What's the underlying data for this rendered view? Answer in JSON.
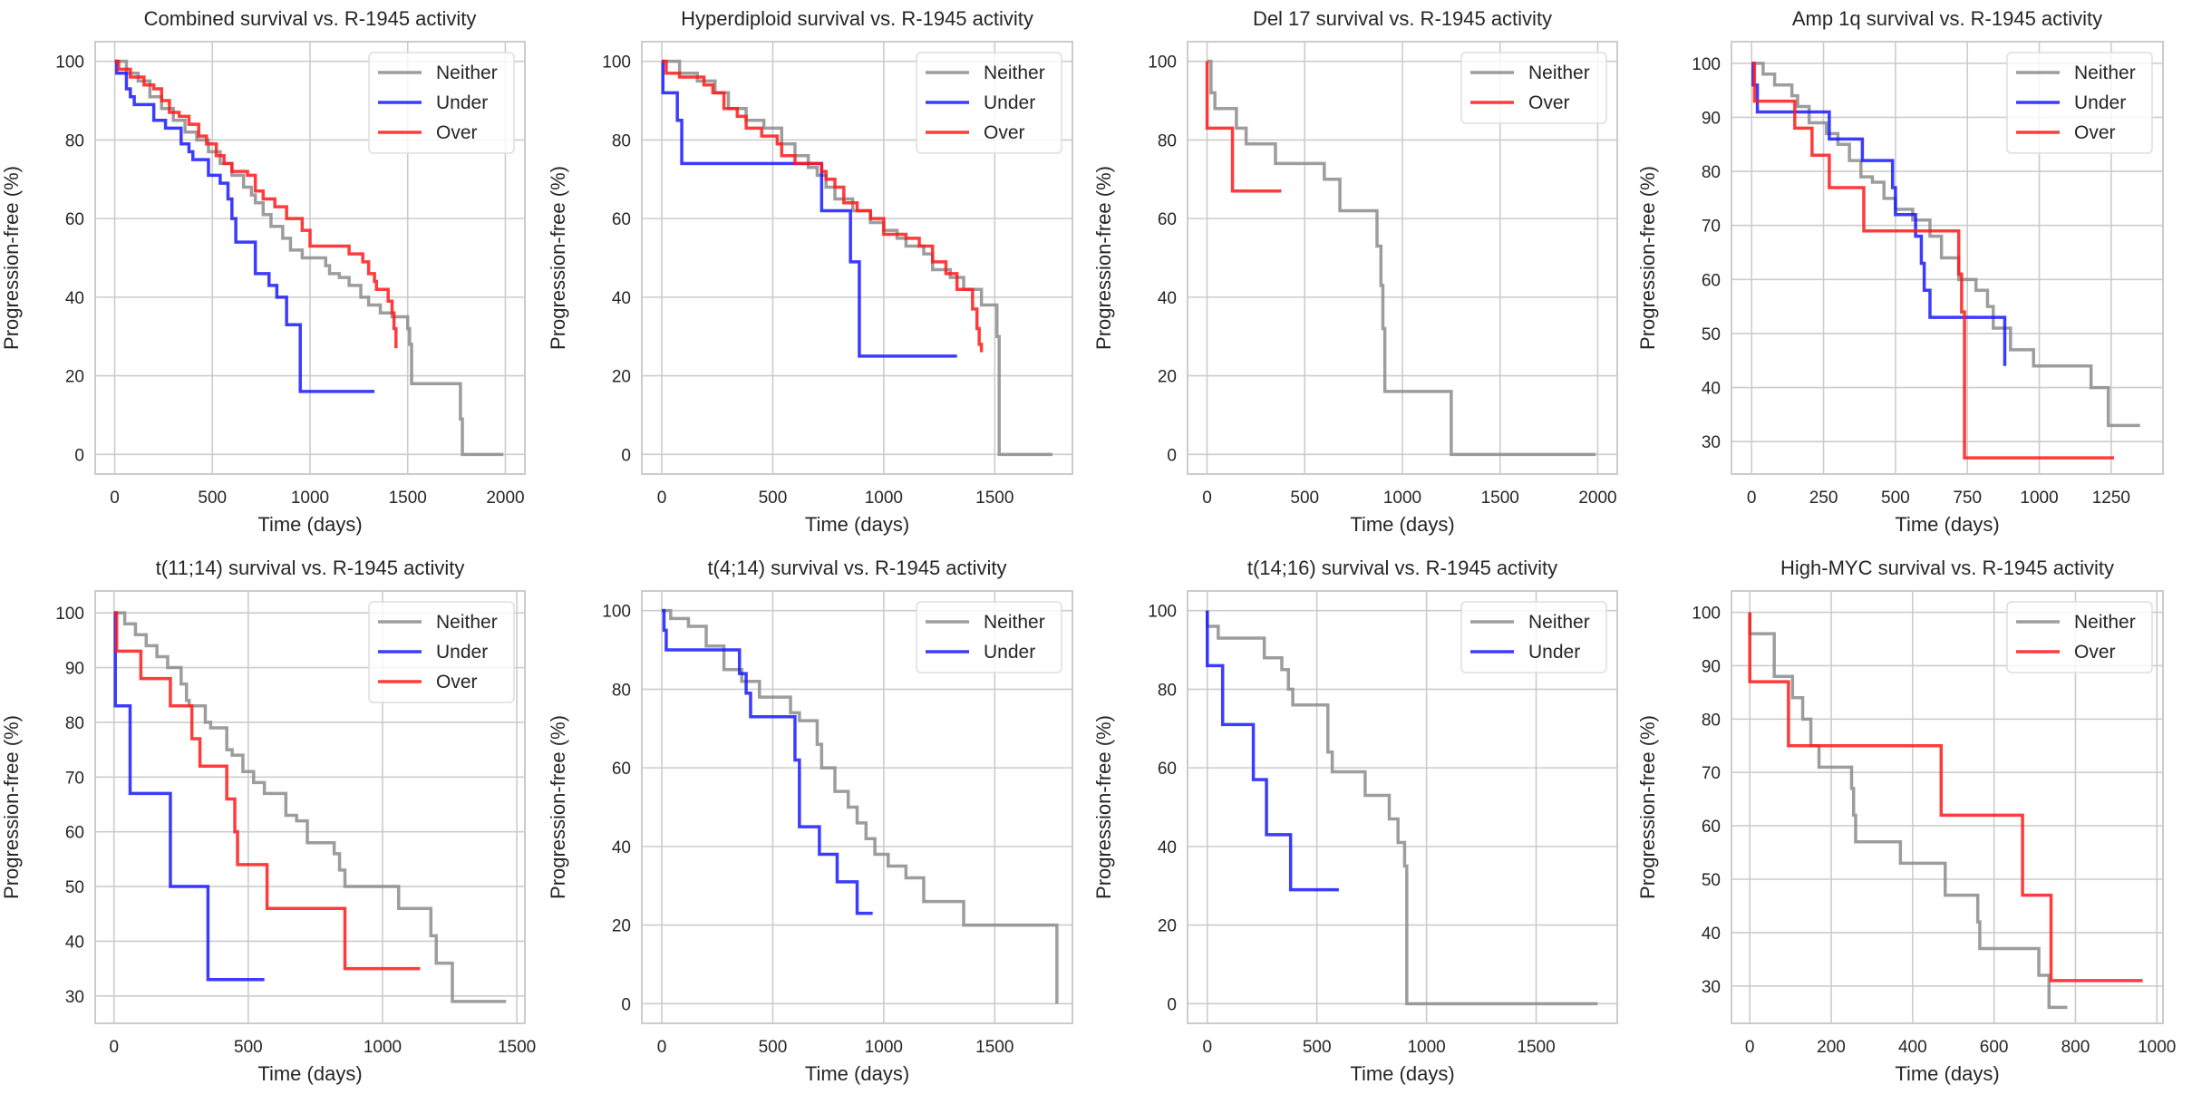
{
  "colors": {
    "Neither": "#8c8c8c",
    "Under": "#1a1aff",
    "Over": "#ff1a1a",
    "grid": "#cccccc",
    "frame": "#cccccc"
  },
  "chart_data": [
    {
      "type": "line",
      "step": true,
      "title": "Combined survival vs. R-1945 activity",
      "xlabel": "Time (days)",
      "ylabel": "Progression-free (%)",
      "xlim": [
        -100,
        2100
      ],
      "ylim": [
        -5,
        105
      ],
      "xticks": [
        0,
        500,
        1000,
        1500,
        2000
      ],
      "yticks": [
        0,
        20,
        40,
        60,
        80,
        100
      ],
      "grid": true,
      "legend": "top-right",
      "series": [
        {
          "name": "Neither",
          "x": [
            0,
            60,
            120,
            180,
            240,
            300,
            360,
            420,
            480,
            540,
            600,
            660,
            700,
            720,
            760,
            800,
            860,
            900,
            960,
            1000,
            1080,
            1100,
            1150,
            1200,
            1260,
            1300,
            1360,
            1420,
            1500,
            1510,
            1520,
            1760,
            1770,
            1780,
            1990
          ],
          "y": [
            100,
            97,
            95,
            91,
            88,
            85,
            82,
            80,
            77,
            74,
            71,
            68,
            66,
            64,
            61,
            58,
            55,
            52,
            50,
            50,
            48,
            46,
            45,
            43,
            40,
            38,
            36,
            35,
            32,
            28,
            18,
            18,
            9,
            0,
            0
          ]
        },
        {
          "name": "Under",
          "x": [
            0,
            10,
            60,
            80,
            100,
            200,
            260,
            340,
            380,
            400,
            480,
            500,
            540,
            580,
            600,
            620,
            720,
            790,
            830,
            880,
            950,
            1330
          ],
          "y": [
            100,
            97,
            93,
            91,
            89,
            85,
            83,
            79,
            77,
            75,
            71,
            71,
            69,
            65,
            60,
            54,
            46,
            43,
            40,
            33,
            16,
            16
          ]
        },
        {
          "name": "Over",
          "x": [
            0,
            20,
            80,
            150,
            200,
            240,
            280,
            330,
            380,
            430,
            470,
            520,
            560,
            600,
            680,
            720,
            760,
            820,
            880,
            960,
            1000,
            1140,
            1200,
            1270,
            1300,
            1330,
            1340,
            1400,
            1420,
            1430,
            1440
          ],
          "y": [
            100,
            98,
            96,
            94,
            93,
            90,
            87,
            86,
            84,
            81,
            79,
            76,
            74,
            72,
            71,
            67,
            65,
            63,
            60,
            57,
            53,
            53,
            51,
            49,
            46,
            44,
            42,
            39,
            36,
            32,
            27
          ]
        }
      ]
    },
    {
      "type": "line",
      "step": true,
      "title": "Hyperdiploid survival vs. R-1945 activity",
      "xlabel": "Time (days)",
      "ylabel": "Progression-free (%)",
      "xlim": [
        -90,
        1850
      ],
      "ylim": [
        -5,
        105
      ],
      "xticks": [
        0,
        500,
        1000,
        1500
      ],
      "yticks": [
        0,
        20,
        40,
        60,
        80,
        100
      ],
      "grid": true,
      "legend": "top-right",
      "series": [
        {
          "name": "Neither",
          "x": [
            0,
            80,
            160,
            240,
            300,
            380,
            460,
            540,
            600,
            660,
            700,
            740,
            780,
            860,
            940,
            1000,
            1060,
            1100,
            1180,
            1220,
            1300,
            1360,
            1440,
            1500,
            1510,
            1520,
            1760
          ],
          "y": [
            100,
            97,
            95,
            92,
            88,
            85,
            83,
            79,
            76,
            73,
            71,
            68,
            65,
            62,
            59,
            57,
            55,
            53,
            51,
            47,
            45,
            42,
            38,
            38,
            30,
            0,
            0
          ]
        },
        {
          "name": "Under",
          "x": [
            0,
            5,
            70,
            90,
            720,
            850,
            890,
            1330
          ],
          "y": [
            100,
            92,
            85,
            74,
            62,
            49,
            25,
            25
          ]
        },
        {
          "name": "Over",
          "x": [
            0,
            20,
            80,
            190,
            230,
            280,
            340,
            380,
            450,
            520,
            540,
            600,
            720,
            740,
            780,
            820,
            880,
            940,
            1000,
            1100,
            1160,
            1220,
            1280,
            1330,
            1400,
            1420,
            1430,
            1440
          ],
          "y": [
            100,
            97,
            96,
            94,
            92,
            88,
            86,
            83,
            81,
            79,
            76,
            74,
            72,
            70,
            68,
            64,
            62,
            60,
            56,
            55,
            53,
            49,
            46,
            42,
            37,
            32,
            28,
            26
          ]
        }
      ]
    },
    {
      "type": "line",
      "step": true,
      "title": "Del 17 survival vs. R-1945 activity",
      "xlabel": "Time (days)",
      "ylabel": "Progression-free (%)",
      "xlim": [
        -100,
        2100
      ],
      "ylim": [
        -5,
        105
      ],
      "xticks": [
        0,
        500,
        1000,
        1500,
        2000
      ],
      "yticks": [
        0,
        20,
        40,
        60,
        80,
        100
      ],
      "grid": true,
      "legend": "top-right",
      "series": [
        {
          "name": "Neither",
          "x": [
            0,
            20,
            40,
            150,
            200,
            350,
            600,
            680,
            870,
            890,
            900,
            910,
            1250,
            1990
          ],
          "y": [
            100,
            92,
            88,
            83,
            79,
            74,
            70,
            62,
            53,
            43,
            32,
            16,
            0,
            0
          ]
        },
        {
          "name": "Over",
          "x": [
            0,
            130,
            380
          ],
          "y": [
            83,
            67,
            67
          ],
          "start_y": 100
        }
      ]
    },
    {
      "type": "line",
      "step": true,
      "title": "Amp 1q survival vs. R-1945 activity",
      "xlabel": "Time (days)",
      "ylabel": "Progression-free (%)",
      "xlim": [
        -70,
        1430
      ],
      "ylim": [
        24,
        104
      ],
      "xticks": [
        0,
        250,
        500,
        750,
        1000,
        1250
      ],
      "yticks": [
        30,
        40,
        50,
        60,
        70,
        80,
        90,
        100
      ],
      "grid": true,
      "legend": "top-right",
      "series": [
        {
          "name": "Neither",
          "x": [
            0,
            40,
            80,
            140,
            160,
            200,
            260,
            300,
            340,
            380,
            420,
            460,
            500,
            560,
            620,
            660,
            720,
            780,
            820,
            840,
            900,
            980,
            1180,
            1240,
            1350
          ],
          "y": [
            100,
            98,
            96,
            94,
            92,
            89,
            87,
            85,
            82,
            79,
            78,
            75,
            73,
            71,
            68,
            64,
            60,
            58,
            55,
            51,
            47,
            44,
            40,
            33,
            33
          ]
        },
        {
          "name": "Under",
          "x": [
            0,
            5,
            20,
            270,
            385,
            490,
            500,
            555,
            570,
            590,
            600,
            620,
            880
          ],
          "y": [
            100,
            96,
            91,
            86,
            82,
            77,
            72,
            72,
            68,
            63,
            58,
            53,
            44
          ]
        },
        {
          "name": "Over",
          "x": [
            0,
            10,
            150,
            210,
            270,
            390,
            720,
            730,
            740,
            1260
          ],
          "y": [
            100,
            93,
            88,
            83,
            77,
            69,
            61,
            54,
            27,
            27
          ]
        }
      ]
    },
    {
      "type": "line",
      "step": true,
      "title": "t(11;14) survival vs. R-1945 activity",
      "xlabel": "Time (days)",
      "ylabel": "Progression-free (%)",
      "xlim": [
        -70,
        1530
      ],
      "ylim": [
        25,
        104
      ],
      "xticks": [
        0,
        500,
        1000,
        1500
      ],
      "yticks": [
        30,
        40,
        50,
        60,
        70,
        80,
        90,
        100
      ],
      "grid": true,
      "legend": "top-right",
      "series": [
        {
          "name": "Neither",
          "x": [
            0,
            40,
            80,
            120,
            160,
            200,
            250,
            270,
            280,
            340,
            360,
            420,
            440,
            480,
            520,
            560,
            640,
            680,
            720,
            760,
            820,
            840,
            860,
            1060,
            1180,
            1200,
            1260,
            1460
          ],
          "y": [
            100,
            98,
            96,
            94,
            92,
            90,
            87,
            84,
            83,
            80,
            79,
            75,
            74,
            71,
            69,
            67,
            63,
            62,
            58,
            58,
            56,
            53,
            50,
            46,
            41,
            36,
            29,
            29
          ]
        },
        {
          "name": "Under",
          "x": [
            0,
            5,
            60,
            210,
            350,
            560
          ],
          "y": [
            100,
            83,
            67,
            50,
            33,
            33
          ]
        },
        {
          "name": "Over",
          "x": [
            0,
            10,
            100,
            210,
            290,
            320,
            420,
            450,
            460,
            570,
            860,
            1140
          ],
          "y": [
            100,
            93,
            88,
            83,
            77,
            72,
            66,
            60,
            54,
            46,
            35,
            35
          ]
        }
      ]
    },
    {
      "type": "line",
      "step": true,
      "title": "t(4;14) survival vs. R-1945 activity",
      "xlabel": "Time (days)",
      "ylabel": "Progression-free (%)",
      "xlim": [
        -90,
        1850
      ],
      "ylim": [
        -5,
        105
      ],
      "xticks": [
        0,
        500,
        1000,
        1500
      ],
      "yticks": [
        0,
        20,
        40,
        60,
        80,
        100
      ],
      "grid": true,
      "legend": "top-right",
      "series": [
        {
          "name": "Neither",
          "x": [
            0,
            40,
            120,
            200,
            280,
            360,
            440,
            580,
            620,
            700,
            720,
            780,
            840,
            880,
            920,
            960,
            1020,
            1100,
            1180,
            1360,
            1780
          ],
          "y": [
            100,
            98,
            96,
            91,
            85,
            82,
            78,
            74,
            72,
            66,
            60,
            54,
            50,
            46,
            42,
            38,
            35,
            32,
            26,
            20,
            0
          ]
        },
        {
          "name": "Under",
          "x": [
            0,
            10,
            20,
            350,
            380,
            400,
            600,
            620,
            710,
            790,
            880,
            950
          ],
          "y": [
            100,
            95,
            90,
            84,
            79,
            73,
            62,
            45,
            38,
            31,
            23,
            23
          ]
        }
      ]
    },
    {
      "type": "line",
      "step": true,
      "title": "t(14;16) survival vs. R-1945 activity",
      "xlabel": "Time (days)",
      "ylabel": "Progression-free (%)",
      "xlim": [
        -90,
        1870
      ],
      "ylim": [
        -5,
        105
      ],
      "xticks": [
        0,
        500,
        1000,
        1500
      ],
      "yticks": [
        0,
        20,
        40,
        60,
        80,
        100
      ],
      "grid": true,
      "legend": "top-right",
      "series": [
        {
          "name": "Neither",
          "x": [
            0,
            50,
            260,
            340,
            370,
            390,
            550,
            570,
            720,
            830,
            870,
            900,
            910,
            1780
          ],
          "y": [
            96,
            93,
            88,
            85,
            80,
            76,
            64,
            59,
            53,
            47,
            41,
            35,
            0,
            0
          ],
          "start_y": 100
        },
        {
          "name": "Under",
          "x": [
            0,
            70,
            210,
            270,
            380,
            600
          ],
          "y": [
            86,
            71,
            57,
            43,
            29,
            29
          ],
          "start_y": 100
        }
      ]
    },
    {
      "type": "line",
      "step": true,
      "title": "High-MYC survival vs. R-1945 activity",
      "xlabel": "Time (days)",
      "ylabel": "Progression-free (%)",
      "xlim": [
        -45,
        1015
      ],
      "ylim": [
        23,
        104
      ],
      "xticks": [
        0,
        200,
        400,
        600,
        800,
        1000
      ],
      "yticks": [
        30,
        40,
        50,
        60,
        70,
        80,
        90,
        100
      ],
      "grid": true,
      "legend": "top-right",
      "series": [
        {
          "name": "Neither",
          "x": [
            0,
            60,
            105,
            130,
            150,
            170,
            250,
            255,
            260,
            370,
            480,
            560,
            565,
            710,
            735,
            780
          ],
          "y": [
            96,
            88,
            84,
            80,
            75,
            71,
            67,
            62,
            57,
            53,
            47,
            42,
            37,
            32,
            26,
            26
          ],
          "start_y": 100
        },
        {
          "name": "Over",
          "x": [
            0,
            95,
            470,
            670,
            740,
            965
          ],
          "y": [
            87,
            75,
            62,
            47,
            31,
            31
          ],
          "start_y": 100
        }
      ]
    }
  ]
}
